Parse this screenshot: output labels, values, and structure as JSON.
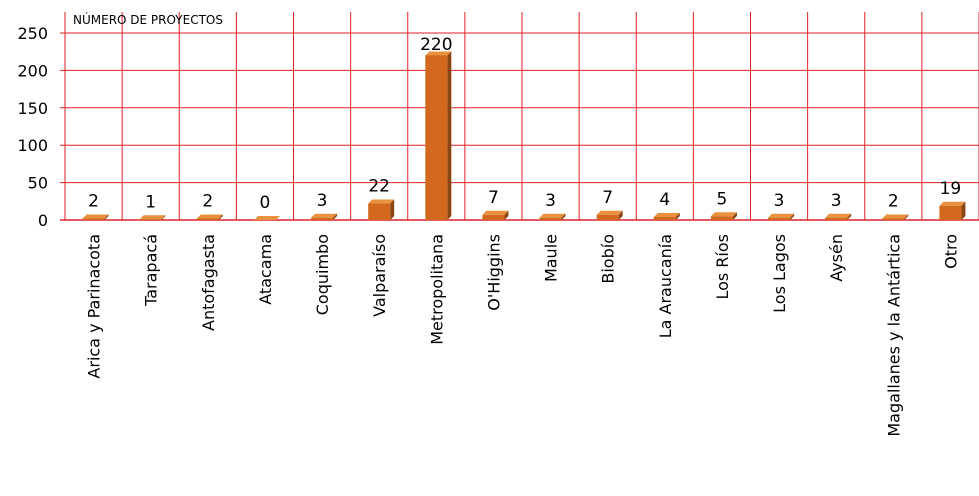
{
  "chart_data": {
    "type": "bar",
    "title": "",
    "xlabel": "",
    "ylabel": "NÚMERO DE PROYECTOS",
    "ylim": [
      0,
      250
    ],
    "yticks": [
      0,
      50,
      100,
      150,
      200,
      250
    ],
    "grid": true,
    "legend": "none",
    "colors": {
      "bar_front": "#d2691e",
      "bar_side": "#8b4513",
      "bar_top": "#e8913f",
      "grid": "#e0202a",
      "axis": "#e0202a"
    },
    "categories": [
      "Arica y Parinacota",
      "Tarapacá",
      "Antofagasta",
      "Atacama",
      "Coquimbo",
      "Valparaíso",
      "Metropolitana",
      "O'Higgins",
      "Maule",
      "Biobío",
      "La Araucanía",
      "Los Ríos",
      "Los Lagos",
      "Aysén",
      "Magallanes y la Antártica",
      "Otro"
    ],
    "values": [
      2,
      1,
      2,
      0,
      3,
      22,
      220,
      7,
      3,
      7,
      4,
      5,
      3,
      3,
      2,
      19
    ]
  }
}
